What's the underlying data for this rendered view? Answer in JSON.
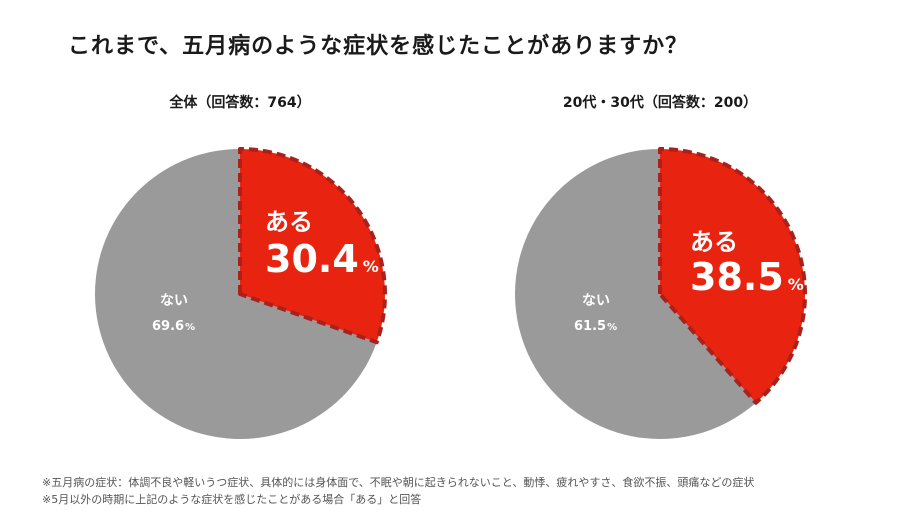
{
  "title": "これまで、五月病のような症状を感じたことがありますか？",
  "chart_data": [
    {
      "type": "pie",
      "title": "全体（回答数：764）",
      "slices": [
        {
          "label": "ある",
          "value": 30.4,
          "unit": "%",
          "color": "#e8230f"
        },
        {
          "label": "ない",
          "value": 69.6,
          "unit": "%",
          "color": "#9a9a9a"
        }
      ]
    },
    {
      "type": "pie",
      "title": "20代・30代（回答数：200）",
      "slices": [
        {
          "label": "ある",
          "value": 38.5,
          "unit": "%",
          "color": "#e8230f"
        },
        {
          "label": "ない",
          "value": 61.5,
          "unit": "%",
          "color": "#9a9a9a"
        }
      ]
    }
  ],
  "notes": [
    "※五月病の症状：体調不良や軽いうつ症状、具体的には身体面で、不眠や朝に起きられないこと、動悸、疲れやすさ、食欲不振、頭痛などの症状",
    "※5月以外の時期に上記のような症状を感じたことがある場合「ある」と回答"
  ]
}
